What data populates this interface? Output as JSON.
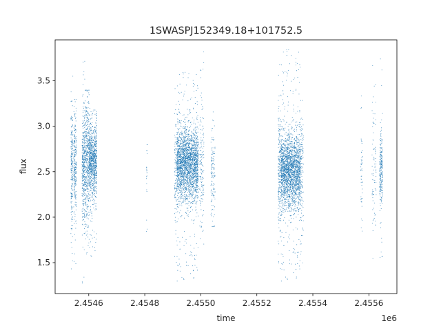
{
  "chart_data": {
    "type": "scatter",
    "title": "1SWASPJ152349.18+101752.5",
    "xlabel": "time",
    "ylabel": "flux",
    "x_offset_label": "1e6",
    "xlim": [
      2454480,
      2455700
    ],
    "ylim": [
      1.16,
      3.95
    ],
    "x_ticks": [
      2454600,
      2454800,
      2455000,
      2455200,
      2455400,
      2455600
    ],
    "x_tick_labels": [
      "2.4546",
      "2.4548",
      "2.4550",
      "2.4552",
      "2.4554",
      "2.4556"
    ],
    "y_ticks": [
      1.5,
      2.0,
      2.5,
      3.0,
      3.5
    ],
    "y_tick_labels": [
      "1.5",
      "2.0",
      "2.5",
      "3.0",
      "3.5"
    ],
    "grid": false,
    "marker_color": "#1f77b4",
    "series": [
      {
        "clusters": [
          {
            "x_start": 2454535,
            "x_end": 2454542,
            "y_center": 2.55,
            "y_spread": 0.36,
            "y_min": 1.28,
            "y_max": 3.65,
            "weight": 0.5
          },
          {
            "x_start": 2454545,
            "x_end": 2454555,
            "y_center": 2.55,
            "y_spread": 0.28,
            "y_min": 1.45,
            "y_max": 3.3,
            "weight": 0.6
          },
          {
            "x_start": 2454575,
            "x_end": 2454585,
            "y_center": 2.55,
            "y_spread": 0.3,
            "y_min": 1.25,
            "y_max": 3.82,
            "weight": 0.8
          },
          {
            "x_start": 2454586,
            "x_end": 2454600,
            "y_center": 2.6,
            "y_spread": 0.35,
            "y_min": 1.6,
            "y_max": 3.4,
            "weight": 1.0
          },
          {
            "x_start": 2454600,
            "x_end": 2454628,
            "y_center": 2.62,
            "y_spread": 0.2,
            "y_min": 1.55,
            "y_max": 3.25,
            "weight": 2.2
          },
          {
            "x_start": 2454805,
            "x_end": 2454808,
            "y_center": 2.5,
            "y_spread": 0.3,
            "y_min": 1.65,
            "y_max": 2.8,
            "weight": 0.05
          },
          {
            "x_start": 2454905,
            "x_end": 2454912,
            "y_center": 2.55,
            "y_spread": 0.3,
            "y_min": 1.3,
            "y_max": 3.65,
            "weight": 0.2
          },
          {
            "x_start": 2454913,
            "x_end": 2454990,
            "y_center": 2.58,
            "y_spread": 0.2,
            "y_min": 1.3,
            "y_max": 3.6,
            "weight": 6.0
          },
          {
            "x_start": 2454995,
            "x_end": 2455010,
            "y_center": 2.55,
            "y_spread": 0.35,
            "y_min": 1.5,
            "y_max": 3.85,
            "weight": 0.35
          },
          {
            "x_start": 2455035,
            "x_end": 2455050,
            "y_center": 2.45,
            "y_spread": 0.3,
            "y_min": 1.9,
            "y_max": 3.3,
            "weight": 0.3
          },
          {
            "x_start": 2455275,
            "x_end": 2455285,
            "y_center": 2.5,
            "y_spread": 0.35,
            "y_min": 1.35,
            "y_max": 3.7,
            "weight": 0.5
          },
          {
            "x_start": 2455285,
            "x_end": 2455355,
            "y_center": 2.5,
            "y_spread": 0.2,
            "y_min": 1.3,
            "y_max": 3.85,
            "weight": 5.5
          },
          {
            "x_start": 2455355,
            "x_end": 2455365,
            "y_center": 2.5,
            "y_spread": 0.35,
            "y_min": 1.5,
            "y_max": 3.3,
            "weight": 0.3
          },
          {
            "x_start": 2455570,
            "x_end": 2455576,
            "y_center": 2.5,
            "y_spread": 0.35,
            "y_min": 1.85,
            "y_max": 3.85,
            "weight": 0.12
          },
          {
            "x_start": 2455610,
            "x_end": 2455625,
            "y_center": 2.5,
            "y_spread": 0.4,
            "y_min": 1.55,
            "y_max": 3.8,
            "weight": 0.2
          },
          {
            "x_start": 2455637,
            "x_end": 2455648,
            "y_center": 2.5,
            "y_spread": 0.2,
            "y_min": 1.45,
            "y_max": 3.75,
            "weight": 0.6
          }
        ]
      }
    ]
  }
}
